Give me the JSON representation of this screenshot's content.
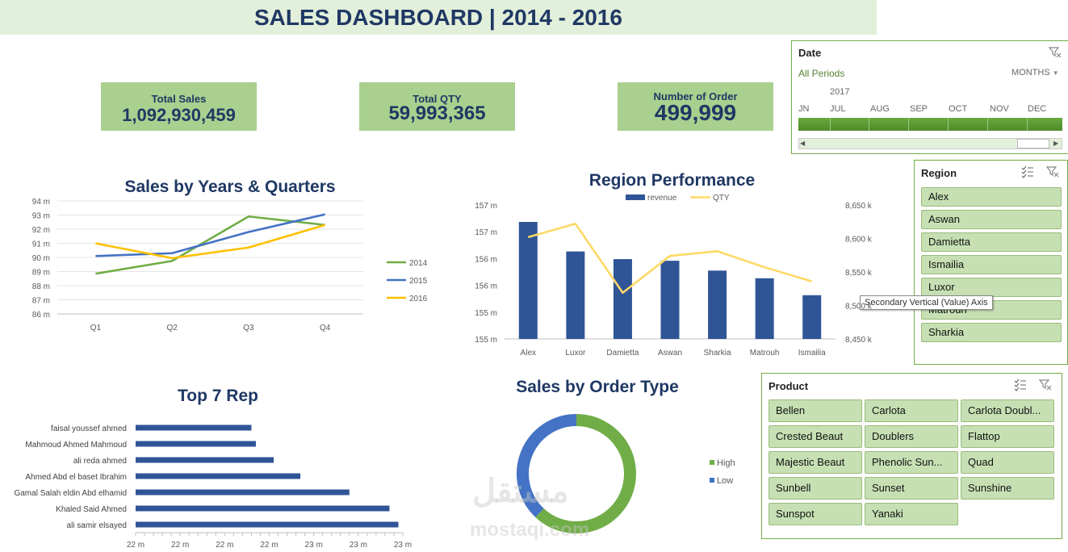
{
  "dashboard_title": "SALES DASHBOARD | 2014 - 2016",
  "kpis": [
    {
      "label": "Total Sales",
      "value": "1,092,930,459"
    },
    {
      "label": "Total QTY",
      "value": "59,993,365"
    },
    {
      "label": "Number of Order",
      "value": "499,999"
    }
  ],
  "date_slicer": {
    "title": "Date",
    "period": "All Periods",
    "level": "MONTHS",
    "year": "2017",
    "months": [
      "JN",
      "JUL",
      "AUG",
      "SEP",
      "OCT",
      "NOV",
      "DEC"
    ]
  },
  "region_slicer": {
    "title": "Region",
    "items": [
      "Alex",
      "Aswan",
      "Damietta",
      "Ismailia",
      "Luxor",
      "Matrouh",
      "Sharkia"
    ]
  },
  "product_slicer": {
    "title": "Product",
    "items": [
      "Bellen",
      "Carlota",
      "Carlota Doubl...",
      "Crested Beaut",
      "Doublers",
      "Flattop",
      "Majestic Beaut",
      "Phenolic Sun...",
      "Quad",
      "Sunbell",
      "Sunset",
      "Sunshine",
      "Sunspot",
      "Yanaki"
    ]
  },
  "tooltip": "Secondary Vertical (Value) Axis",
  "watermark": {
    "arabic": "مستقل",
    "latin": "mostaqi.com"
  },
  "colors": {
    "title_band": "#e2efda",
    "kpi": "#a9d08e",
    "navy": "#1f3864",
    "bar": "#2f5597",
    "y2014": "#70ad47",
    "y2015": "#4472c4",
    "y2016": "#ffc000",
    "qty_line": "#ffd966",
    "high": "#70ad47",
    "low": "#4472c4"
  },
  "chart_data": [
    {
      "type": "line",
      "title": "Sales by Years & Quarters",
      "categories": [
        "Q1",
        "Q2",
        "Q3",
        "Q4"
      ],
      "y_ticks": [
        "86 m",
        "87 m",
        "88 m",
        "89 m",
        "90 m",
        "91 m",
        "92 m",
        "93 m",
        "94 m"
      ],
      "ylim": [
        86,
        94
      ],
      "legend_position": "right",
      "series": [
        {
          "name": "2014",
          "values": [
            88.85,
            89.75,
            92.9,
            92.3
          ]
        },
        {
          "name": "2015",
          "values": [
            90.1,
            90.3,
            91.8,
            93.05
          ]
        },
        {
          "name": "2016",
          "values": [
            91.0,
            89.95,
            90.7,
            92.3
          ]
        }
      ]
    },
    {
      "type": "bar",
      "title": "Region Performance",
      "categories": [
        "Alex",
        "Luxor",
        "Damietta",
        "Aswan",
        "Sharkia",
        "Matrouh",
        "Ismailia"
      ],
      "y_ticks": [
        "155 m",
        "155 m",
        "156 m",
        "156 m",
        "157 m",
        "157 m"
      ],
      "y2_ticks": [
        "8,450 k",
        "8,500 k",
        "8,550 k",
        "8,600 k",
        "8,650 k"
      ],
      "legend_position": "top",
      "series": [
        {
          "name": "revenue",
          "type": "bar",
          "values": [
            156.94,
            156.4,
            156.26,
            156.23,
            156.05,
            155.91,
            155.6
          ]
        },
        {
          "name": "QTY",
          "type": "line",
          "axis": "secondary",
          "values": [
            8602,
            8622,
            8519,
            8574,
            8581,
            8557,
            8536
          ]
        }
      ],
      "ylim": [
        154.8,
        157.25
      ],
      "y2lim": [
        8450,
        8650
      ]
    },
    {
      "type": "bar",
      "orientation": "horizontal",
      "title": "Top 7 Rep",
      "categories": [
        "faisal youssef ahmed",
        "Mahmoud Ahmed Mahmoud",
        "ali reda ahmed",
        "Ahmed Abd el baset Ibrahim",
        "Gamal Salah eldin Abd elhamid",
        "Khaled Said Ahmed",
        "ali samir elsayed"
      ],
      "values": [
        22.26,
        22.27,
        22.31,
        22.37,
        22.48,
        22.57,
        22.59
      ],
      "x_ticks": [
        "22 m",
        "22 m",
        "22 m",
        "22 m",
        "23 m",
        "23 m",
        "23 m"
      ],
      "xlim": [
        22.0,
        22.6
      ]
    },
    {
      "type": "pie",
      "variant": "donut",
      "title": "Sales by Order Type",
      "categories": [
        "High",
        "Low"
      ],
      "values": [
        62,
        38
      ],
      "legend_position": "right"
    }
  ]
}
